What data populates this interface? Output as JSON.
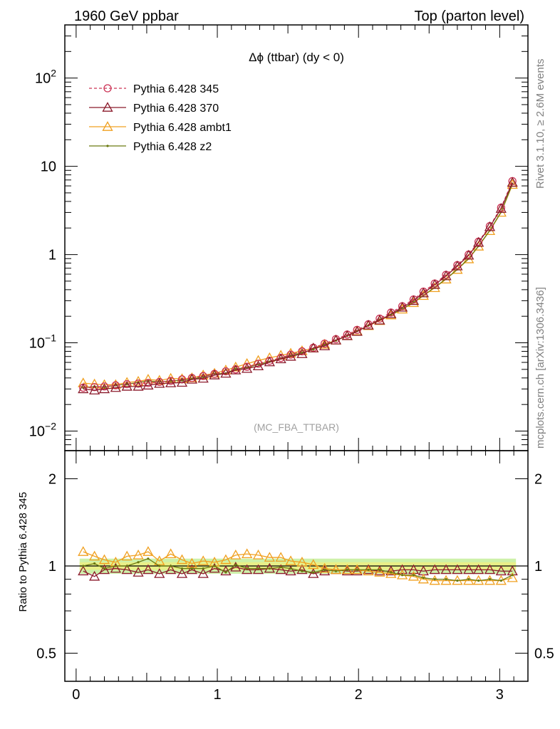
{
  "header": {
    "left": "1960 GeV ppbar",
    "right": "Top (parton level)"
  },
  "side_labels": {
    "rivet": "Rivet 3.1.10, ≥ 2.6M events",
    "mcplots": "mcplots.cern.ch [arXiv:1306.3436]"
  },
  "analysis_tag": "(MC_FBA_TTBAR)",
  "chart_data": {
    "main": {
      "type": "line",
      "title": "Δϕ (ttbar) (dy < 0)",
      "x_scale": "linear",
      "y_scale": "log",
      "xlim": [
        -0.08,
        3.2
      ],
      "ylim": [
        0.006,
        400
      ],
      "y_tick_labels": [
        "10^-2",
        "10^-1",
        "1",
        "10",
        "10^2"
      ],
      "legend_position": "top-left",
      "x": [
        0.05,
        0.13,
        0.2,
        0.28,
        0.36,
        0.44,
        0.51,
        0.59,
        0.67,
        0.75,
        0.82,
        0.9,
        0.98,
        1.06,
        1.13,
        1.21,
        1.29,
        1.37,
        1.45,
        1.52,
        1.6,
        1.68,
        1.76,
        1.84,
        1.92,
        1.99,
        2.07,
        2.15,
        2.23,
        2.31,
        2.39,
        2.46,
        2.54,
        2.62,
        2.7,
        2.78,
        2.85,
        2.93,
        3.01,
        3.09
      ],
      "series": [
        {
          "name": "Pythia 6.428 345",
          "color": "#cc3355",
          "line": "dashed",
          "marker": "open-circle",
          "values": [
            0.031,
            0.0315,
            0.032,
            0.033,
            0.034,
            0.0345,
            0.035,
            0.036,
            0.037,
            0.0385,
            0.04,
            0.042,
            0.0445,
            0.0475,
            0.05,
            0.0535,
            0.058,
            0.0625,
            0.0675,
            0.0735,
            0.08,
            0.088,
            0.098,
            0.11,
            0.124,
            0.14,
            0.162,
            0.188,
            0.22,
            0.26,
            0.31,
            0.38,
            0.47,
            0.59,
            0.76,
            1.0,
            1.4,
            2.1,
            3.4,
            6.8
          ]
        },
        {
          "name": "Pythia 6.428 370",
          "color": "#8b1a2b",
          "line": "solid",
          "marker": "open-triangle",
          "values": [
            0.03,
            0.029,
            0.03,
            0.031,
            0.032,
            0.032,
            0.033,
            0.0345,
            0.035,
            0.0355,
            0.0385,
            0.0395,
            0.043,
            0.045,
            0.049,
            0.051,
            0.0545,
            0.0605,
            0.0655,
            0.07,
            0.075,
            0.087,
            0.092,
            0.107,
            0.12,
            0.134,
            0.158,
            0.18,
            0.212,
            0.252,
            0.3,
            0.366,
            0.455,
            0.572,
            0.74,
            0.98,
            1.37,
            2.06,
            3.32,
            6.55
          ]
        },
        {
          "name": "Pythia 6.428 ambt1",
          "color": "#f0a020",
          "line": "solid",
          "marker": "open-triangle",
          "values": [
            0.035,
            0.034,
            0.0335,
            0.0335,
            0.0355,
            0.0365,
            0.0385,
            0.0375,
            0.0395,
            0.039,
            0.04,
            0.043,
            0.045,
            0.049,
            0.053,
            0.058,
            0.063,
            0.0675,
            0.072,
            0.076,
            0.081,
            0.087,
            0.096,
            0.107,
            0.12,
            0.136,
            0.156,
            0.178,
            0.206,
            0.24,
            0.284,
            0.342,
            0.42,
            0.525,
            0.675,
            0.89,
            1.24,
            1.86,
            3.0,
            6.2
          ]
        },
        {
          "name": "Pythia 6.428 z2",
          "color": "#6b7a10",
          "line": "solid",
          "marker": "dot",
          "values": [
            0.031,
            0.032,
            0.0315,
            0.033,
            0.034,
            0.0355,
            0.037,
            0.036,
            0.037,
            0.0375,
            0.039,
            0.041,
            0.0445,
            0.045,
            0.0505,
            0.0525,
            0.057,
            0.061,
            0.067,
            0.072,
            0.077,
            0.084,
            0.095,
            0.106,
            0.12,
            0.136,
            0.157,
            0.183,
            0.208,
            0.242,
            0.287,
            0.345,
            0.425,
            0.53,
            0.68,
            0.9,
            1.25,
            1.88,
            3.04,
            6.3
          ]
        }
      ]
    },
    "ratio": {
      "type": "line",
      "ylabel": "Ratio to Pythia 6.428 345",
      "y_scale": "log",
      "xlim": [
        -0.08,
        3.2
      ],
      "ylim": [
        0.4,
        2.5
      ],
      "x_tick_labels": [
        "0",
        "1",
        "2",
        "3"
      ],
      "y_tick_labels": [
        "0.5",
        "1",
        "2"
      ],
      "reference_band": [
        0.94,
        1.06
      ],
      "series": [
        {
          "name": "Pythia 6.428 370",
          "color": "#8b1a2b",
          "values": [
            0.96,
            0.92,
            0.97,
            0.98,
            0.97,
            0.95,
            0.97,
            0.94,
            0.97,
            0.94,
            0.97,
            0.94,
            0.98,
            0.96,
            0.99,
            0.97,
            0.97,
            0.98,
            0.97,
            0.96,
            0.97,
            0.94,
            0.96,
            0.97,
            0.96,
            0.96,
            0.97,
            0.96,
            0.96,
            0.97,
            0.97,
            0.96,
            0.97,
            0.97,
            0.97,
            0.97,
            0.97,
            0.97,
            0.96,
            0.96
          ]
        },
        {
          "name": "Pythia 6.428 ambt1",
          "color": "#f0a020",
          "values": [
            1.12,
            1.08,
            1.05,
            1.03,
            1.08,
            1.09,
            1.12,
            1.04,
            1.1,
            1.05,
            1.02,
            1.04,
            1.03,
            1.05,
            1.09,
            1.1,
            1.09,
            1.07,
            1.07,
            1.04,
            1.03,
            1.01,
            0.98,
            0.97,
            0.97,
            0.97,
            0.96,
            0.95,
            0.94,
            0.93,
            0.92,
            0.9,
            0.89,
            0.89,
            0.89,
            0.89,
            0.89,
            0.89,
            0.89,
            0.91
          ]
        },
        {
          "name": "Pythia 6.428 z2",
          "color": "#6b7a10",
          "values": [
            1.0,
            1.02,
            0.98,
            1.0,
            1.0,
            1.03,
            1.06,
            1.0,
            1.0,
            0.98,
            0.98,
            0.98,
            1.0,
            0.95,
            1.01,
            0.98,
            0.98,
            0.98,
            0.99,
            0.98,
            0.96,
            0.95,
            0.97,
            0.96,
            0.97,
            0.97,
            0.97,
            0.97,
            0.95,
            0.93,
            0.93,
            0.91,
            0.9,
            0.9,
            0.89,
            0.9,
            0.89,
            0.9,
            0.89,
            0.93
          ]
        }
      ]
    }
  }
}
